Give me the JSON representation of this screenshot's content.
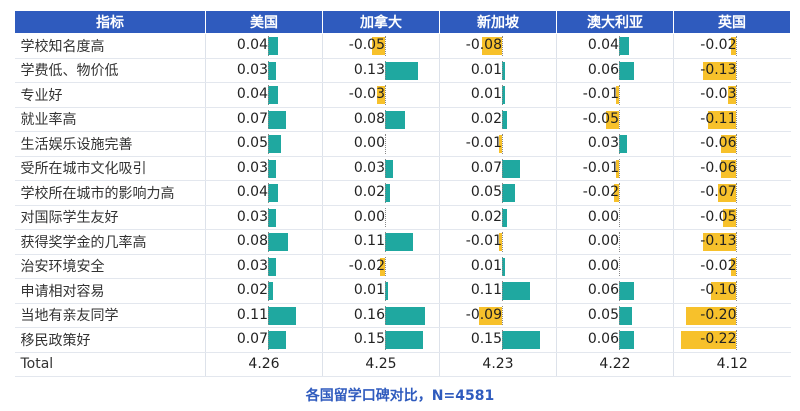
{
  "chart_data": {
    "type": "table",
    "columns": [
      "指标",
      "美国",
      "加拿大",
      "新加坡",
      "澳大利亚",
      "英国"
    ],
    "rows": [
      {
        "label": "学校知名度高",
        "values": [
          0.04,
          -0.05,
          -0.08,
          0.04,
          -0.02
        ],
        "texts": [
          "0.04",
          "-0.05",
          "-0.08",
          "0.04",
          "-0.02"
        ]
      },
      {
        "label": "学费低、物价低",
        "values": [
          0.03,
          0.13,
          0.01,
          0.06,
          -0.13
        ],
        "texts": [
          "0.03",
          "0.13",
          "0.01",
          "0.06",
          "-0.13"
        ]
      },
      {
        "label": "专业好",
        "values": [
          0.04,
          -0.03,
          0.01,
          -0.01,
          -0.03
        ],
        "texts": [
          "0.04",
          "-0.03",
          "0.01",
          "-0.01",
          "-0.03"
        ]
      },
      {
        "label": "就业率高",
        "values": [
          0.07,
          0.08,
          0.02,
          -0.05,
          -0.11
        ],
        "texts": [
          "0.07",
          "0.08",
          "0.02",
          "-0.05",
          "-0.11"
        ]
      },
      {
        "label": "生活娱乐设施完善",
        "values": [
          0.05,
          0.0,
          -0.01,
          0.03,
          -0.06
        ],
        "texts": [
          "0.05",
          "0.00",
          "-0.01",
          "0.03",
          "-0.06"
        ]
      },
      {
        "label": "受所在城市文化吸引",
        "values": [
          0.03,
          0.03,
          0.07,
          -0.01,
          -0.06
        ],
        "texts": [
          "0.03",
          "0.03",
          "0.07",
          "-0.01",
          "-0.06"
        ]
      },
      {
        "label": "学校所在城市的影响力高",
        "values": [
          0.04,
          0.02,
          0.05,
          -0.02,
          -0.07
        ],
        "texts": [
          "0.04",
          "0.02",
          "0.05",
          "-0.02",
          "-0.07"
        ]
      },
      {
        "label": "对国际学生友好",
        "values": [
          0.03,
          0.0,
          0.02,
          0.0,
          -0.05
        ],
        "texts": [
          "0.03",
          "0.00",
          "0.02",
          "0.00",
          "-0.05"
        ]
      },
      {
        "label": "获得奖学金的几率高",
        "values": [
          0.08,
          0.11,
          -0.01,
          0.0,
          -0.13
        ],
        "texts": [
          "0.08",
          "0.11",
          "-0.01",
          "0.00",
          "-0.13"
        ]
      },
      {
        "label": "治安环境安全",
        "values": [
          0.03,
          -0.02,
          0.01,
          0.0,
          -0.02
        ],
        "texts": [
          "0.03",
          "-0.02",
          "0.01",
          "0.00",
          "-0.02"
        ]
      },
      {
        "label": "申请相对容易",
        "values": [
          0.02,
          0.01,
          0.11,
          0.06,
          -0.1
        ],
        "texts": [
          "0.02",
          "0.01",
          "0.11",
          "0.06",
          "-0.10"
        ]
      },
      {
        "label": "当地有亲友同学",
        "values": [
          0.11,
          0.16,
          -0.09,
          0.05,
          -0.2
        ],
        "texts": [
          "0.11",
          "0.16",
          "-0.09",
          "0.05",
          "-0.20"
        ]
      },
      {
        "label": "移民政策好",
        "values": [
          0.07,
          0.15,
          0.15,
          0.06,
          -0.22
        ],
        "texts": [
          "0.07",
          "0.15",
          "0.15",
          "0.06",
          "-0.22"
        ]
      }
    ],
    "total": {
      "label": "Total",
      "values": [
        "4.26",
        "4.25",
        "4.23",
        "4.22",
        "4.12"
      ]
    },
    "caption": "各国留学口碑对比，N=4581",
    "colors": {
      "header": "#2f5bbe",
      "positive": "#1fa8a0",
      "negative": "#f7c12b",
      "caption": "#2f5bbe"
    }
  }
}
